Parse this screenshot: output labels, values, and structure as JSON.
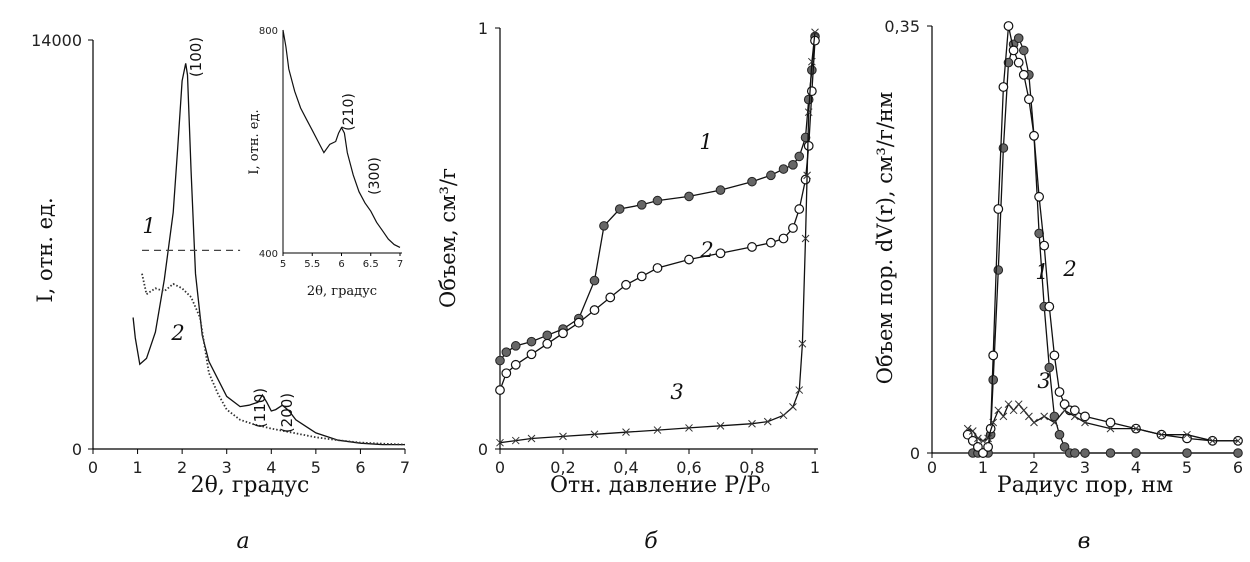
{
  "chart_data": [
    {
      "panel": "a",
      "type": "line",
      "xlabel": "2θ, градус",
      "ylabel": "I, отн. ед.",
      "xlim": [
        0,
        7
      ],
      "ylim": [
        0,
        14000
      ],
      "x_ticks": [
        "0",
        "1",
        "2",
        "3",
        "4",
        "5",
        "6",
        "7"
      ],
      "y_ticks": [
        "0",
        "14000"
      ],
      "series": [
        {
          "name": "1",
          "style": "solid",
          "x": [
            0.9,
            0.95,
            1.05,
            1.2,
            1.4,
            1.6,
            1.8,
            1.9,
            2.0,
            2.08,
            2.12,
            2.2,
            2.3,
            2.45,
            2.6,
            2.8,
            3.0,
            3.3,
            3.5,
            3.7,
            3.8,
            3.9,
            4.0,
            4.1,
            4.25,
            4.4,
            4.55,
            4.8,
            5.0,
            5.5,
            6.0,
            6.5,
            7.0
          ],
          "y": [
            4500,
            3800,
            2900,
            3100,
            4000,
            5800,
            8100,
            10300,
            12600,
            13200,
            12800,
            9500,
            6000,
            3900,
            3000,
            2400,
            1800,
            1450,
            1500,
            1600,
            1850,
            1600,
            1300,
            1350,
            1500,
            1300,
            1000,
            750,
            550,
            300,
            200,
            150,
            150
          ]
        },
        {
          "name": "2",
          "style": "dotted",
          "x": [
            1.1,
            1.2,
            1.4,
            1.6,
            1.8,
            2.0,
            2.2,
            2.4,
            2.6,
            2.8,
            3.0,
            3.3,
            3.6,
            4.0,
            4.5,
            5.0,
            5.5,
            6.0,
            6.5,
            7.0
          ],
          "y": [
            6000,
            5300,
            5500,
            5400,
            5650,
            5500,
            5200,
            4500,
            2600,
            1900,
            1350,
            1000,
            850,
            700,
            550,
            400,
            300,
            220,
            180,
            150
          ]
        }
      ],
      "annotations": [
        "(100)",
        "(110)",
        "(200)",
        "1",
        "2"
      ],
      "reference_line": {
        "style": "dashed",
        "y": 6800,
        "x": [
          1.1,
          3.3
        ]
      },
      "inset": {
        "xlabel": "2θ, градус",
        "ylabel": "I, отн. ед.",
        "xlim": [
          5,
          7
        ],
        "ylim": [
          400,
          800
        ],
        "x_ticks": [
          "5",
          "5.5",
          "6",
          "6.5",
          "7"
        ],
        "y_ticks": [
          "400",
          "800"
        ],
        "x": [
          5.0,
          5.05,
          5.1,
          5.2,
          5.3,
          5.4,
          5.5,
          5.6,
          5.7,
          5.8,
          5.9,
          5.95,
          6.0,
          6.05,
          6.1,
          6.2,
          6.3,
          6.4,
          6.5,
          6.6,
          6.7,
          6.8,
          6.9,
          7.0
        ],
        "y": [
          800,
          770,
          730,
          690,
          660,
          640,
          620,
          600,
          580,
          595,
          600,
          615,
          625,
          615,
          580,
          540,
          510,
          490,
          475,
          455,
          440,
          425,
          415,
          410
        ],
        "annotations": [
          "(210)",
          "(300)"
        ]
      }
    },
    {
      "panel": "б",
      "type": "line",
      "xlabel": "Отн. давление P/P₀",
      "ylabel": "Объем, см³/г",
      "xlim": [
        0,
        1
      ],
      "ylim": [
        0,
        1
      ],
      "x_ticks": [
        "0",
        "0,2",
        "0,4",
        "0,6",
        "0,8",
        "1"
      ],
      "y_ticks": [
        "0",
        "1"
      ],
      "series": [
        {
          "name": "1",
          "marker": "filled-circle",
          "x": [
            0.0,
            0.02,
            0.05,
            0.1,
            0.15,
            0.2,
            0.25,
            0.3,
            0.33,
            0.38,
            0.45,
            0.5,
            0.6,
            0.7,
            0.8,
            0.86,
            0.9,
            0.93,
            0.95,
            0.97,
            0.98,
            0.99,
            1.0
          ],
          "y": [
            0.21,
            0.23,
            0.245,
            0.255,
            0.27,
            0.285,
            0.31,
            0.4,
            0.53,
            0.57,
            0.58,
            0.59,
            0.6,
            0.615,
            0.635,
            0.65,
            0.665,
            0.675,
            0.695,
            0.74,
            0.83,
            0.9,
            0.98
          ]
        },
        {
          "name": "2",
          "marker": "open-circle",
          "x": [
            0.0,
            0.02,
            0.05,
            0.1,
            0.15,
            0.2,
            0.25,
            0.3,
            0.35,
            0.4,
            0.45,
            0.5,
            0.6,
            0.7,
            0.8,
            0.86,
            0.9,
            0.93,
            0.95,
            0.97,
            0.98,
            0.99,
            1.0
          ],
          "y": [
            0.14,
            0.18,
            0.2,
            0.225,
            0.25,
            0.275,
            0.3,
            0.33,
            0.36,
            0.39,
            0.41,
            0.43,
            0.45,
            0.465,
            0.48,
            0.49,
            0.5,
            0.525,
            0.57,
            0.64,
            0.72,
            0.85,
            0.97
          ]
        },
        {
          "name": "3",
          "marker": "cross",
          "x": [
            0.0,
            0.05,
            0.1,
            0.2,
            0.3,
            0.4,
            0.5,
            0.6,
            0.7,
            0.8,
            0.85,
            0.9,
            0.93,
            0.95,
            0.96,
            0.97,
            0.975,
            0.98,
            0.99,
            1.0
          ],
          "y": [
            0.015,
            0.02,
            0.025,
            0.03,
            0.035,
            0.04,
            0.045,
            0.05,
            0.055,
            0.06,
            0.065,
            0.08,
            0.1,
            0.14,
            0.25,
            0.5,
            0.65,
            0.8,
            0.92,
            0.99
          ]
        }
      ],
      "annotations": [
        "1",
        "2",
        "3"
      ]
    },
    {
      "panel": "в",
      "type": "line",
      "xlabel": "Радиус пор, нм",
      "ylabel": "Объем пор. dV(r), см³/г/нм",
      "xlim": [
        0,
        6
      ],
      "ylim": [
        0,
        0.35
      ],
      "x_ticks": [
        "0",
        "1",
        "2",
        "3",
        "4",
        "5",
        "6"
      ],
      "y_ticks": [
        "0",
        "0,35"
      ],
      "series": [
        {
          "name": "1",
          "marker": "filled-circle",
          "x": [
            0.8,
            0.9,
            1.0,
            1.1,
            1.15,
            1.2,
            1.3,
            1.4,
            1.5,
            1.6,
            1.7,
            1.8,
            1.9,
            2.0,
            2.1,
            2.2,
            2.3,
            2.4,
            2.5,
            2.6,
            2.7,
            2.8,
            3.0,
            3.5,
            4.0,
            5.0,
            6.0
          ],
          "y": [
            0.0,
            0.0,
            0.0,
            0.0,
            0.015,
            0.06,
            0.15,
            0.25,
            0.32,
            0.335,
            0.34,
            0.33,
            0.31,
            0.26,
            0.18,
            0.12,
            0.07,
            0.03,
            0.015,
            0.005,
            0.0,
            0.0,
            0.0,
            0.0,
            0.0,
            0.0,
            0.0
          ]
        },
        {
          "name": "2",
          "marker": "open-circle",
          "x": [
            0.7,
            0.8,
            0.9,
            1.0,
            1.1,
            1.15,
            1.2,
            1.3,
            1.4,
            1.5,
            1.6,
            1.7,
            1.8,
            1.9,
            2.0,
            2.1,
            2.2,
            2.3,
            2.4,
            2.5,
            2.6,
            2.7,
            2.8,
            3.0,
            3.5,
            4.0,
            4.5,
            5.0,
            5.5,
            6.0
          ],
          "y": [
            0.015,
            0.01,
            0.005,
            0.0,
            0.005,
            0.02,
            0.08,
            0.2,
            0.3,
            0.35,
            0.33,
            0.32,
            0.31,
            0.29,
            0.26,
            0.21,
            0.17,
            0.12,
            0.08,
            0.05,
            0.04,
            0.035,
            0.035,
            0.03,
            0.025,
            0.02,
            0.015,
            0.012,
            0.01,
            0.01
          ]
        },
        {
          "name": "3",
          "marker": "cross",
          "x": [
            0.7,
            0.8,
            0.9,
            1.0,
            1.1,
            1.2,
            1.3,
            1.4,
            1.5,
            1.6,
            1.7,
            1.8,
            1.9,
            2.0,
            2.2,
            2.4,
            2.6,
            2.8,
            3.0,
            3.5,
            4.0,
            4.5,
            5.0,
            5.5,
            6.0
          ],
          "y": [
            0.02,
            0.018,
            0.012,
            0.01,
            0.012,
            0.025,
            0.035,
            0.03,
            0.04,
            0.035,
            0.04,
            0.035,
            0.03,
            0.025,
            0.03,
            0.025,
            0.035,
            0.03,
            0.025,
            0.02,
            0.02,
            0.015,
            0.015,
            0.01,
            0.01
          ]
        }
      ],
      "annotations": [
        "1",
        "2",
        "3"
      ]
    }
  ],
  "panel_labels": [
    "а",
    "б",
    "в"
  ],
  "colors": {
    "axis": "#000000",
    "line": "#000000",
    "dotted": "#333333",
    "grey": "#555555"
  }
}
